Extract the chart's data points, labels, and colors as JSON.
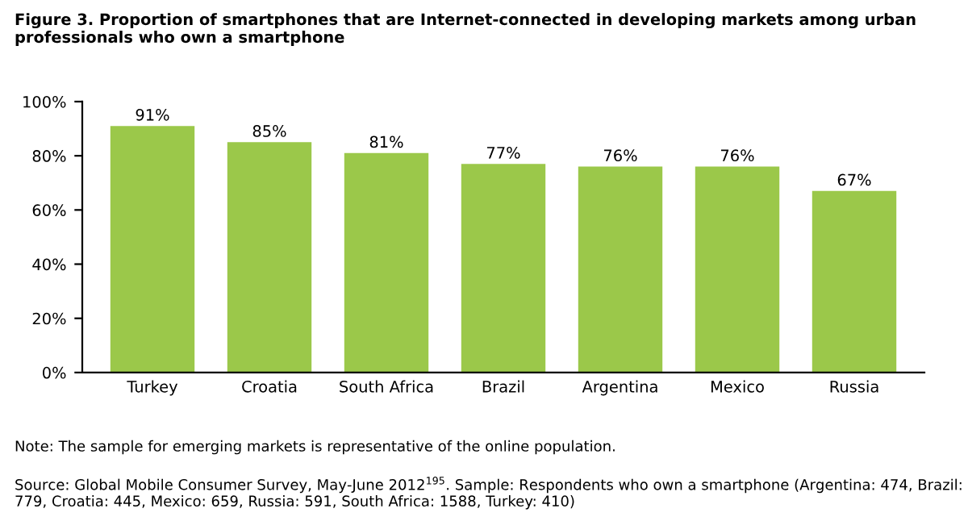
{
  "chart_data": {
    "type": "bar",
    "title": "Figure 3. Proportion of smartphones that are Internet-connected in developing markets among urban professionals who own a smartphone",
    "categories": [
      "Turkey",
      "Croatia",
      "South Africa",
      "Brazil",
      "Argentina",
      "Mexico",
      "Russia"
    ],
    "values": [
      91,
      85,
      81,
      77,
      76,
      76,
      67
    ],
    "color": "#9bc84a",
    "value_labels": [
      "91%",
      "85%",
      "81%",
      "77%",
      "76%",
      "76%",
      "67%"
    ],
    "ylim": [
      0,
      100
    ],
    "yticks": [
      {
        "value": 0,
        "label": "0%"
      },
      {
        "value": 20,
        "label": "20%"
      },
      {
        "value": 40,
        "label": "40%"
      },
      {
        "value": 60,
        "label": "60%"
      },
      {
        "value": 80,
        "label": "80%"
      },
      {
        "value": 100,
        "label": "100%"
      }
    ],
    "grid": false,
    "annotations": [
      "Note: The sample for emerging markets is representative of the online population.",
      "Source: Global Mobile Consumer Survey, May-June 2012$^{195}$. Sample: Respondents who own a smartphone (Argentina: 474, Brazil: 779, Croatia: 445, Mexico: 659, Russia: 591, South Africa: 1588, Turkey: 410)"
    ]
  }
}
